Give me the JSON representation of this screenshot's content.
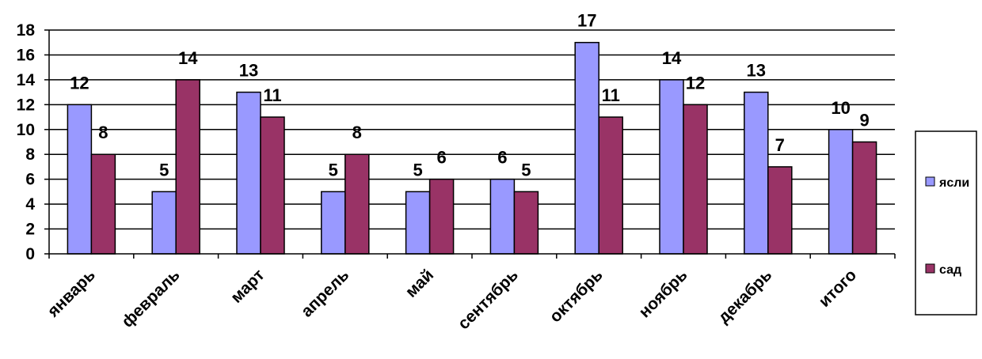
{
  "chart_data": {
    "type": "bar",
    "categories": [
      "январь",
      "февраль",
      "март",
      "апрель",
      "май",
      "сентябрь",
      "октябрь",
      "ноябрь",
      "декабрь",
      "итого"
    ],
    "series": [
      {
        "name": "ясли",
        "values": [
          12,
          5,
          13,
          5,
          5,
          6,
          17,
          14,
          13,
          10
        ],
        "color": "#9999ff"
      },
      {
        "name": "сад",
        "values": [
          8,
          14,
          11,
          8,
          6,
          5,
          11,
          12,
          7,
          9
        ],
        "color": "#993366"
      }
    ],
    "ylim": [
      0,
      18
    ],
    "yticks": [
      0,
      2,
      4,
      6,
      8,
      10,
      12,
      14,
      16,
      18
    ],
    "grid": true,
    "legend": "right"
  }
}
